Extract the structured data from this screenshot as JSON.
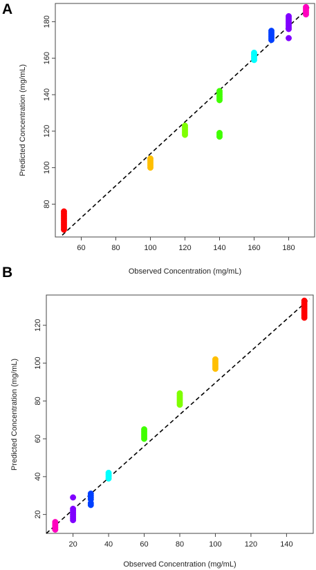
{
  "chart_data": [
    {
      "type": "scatter",
      "panel_label": "A",
      "xlabel": "Observed Concentration (mg/mL)",
      "ylabel": "Predicted Concentration (mg/mL)",
      "xlim": [
        45,
        195
      ],
      "ylim": [
        62,
        190
      ],
      "xticks": [
        60,
        80,
        100,
        120,
        140,
        160,
        180
      ],
      "yticks": [
        80,
        100,
        120,
        140,
        160,
        180
      ],
      "reference_line": {
        "style": "dashed",
        "color": "#000000",
        "from": [
          49,
          63
        ],
        "to": [
          192,
          188
        ]
      },
      "series": [
        {
          "color": "#ff0000",
          "points": [
            [
              50,
              76
            ],
            [
              50,
              75
            ],
            [
              50,
              74
            ],
            [
              50,
              73
            ],
            [
              50,
              72
            ],
            [
              50,
              71
            ],
            [
              50,
              70
            ],
            [
              50,
              69
            ],
            [
              50,
              68
            ],
            [
              50,
              67
            ],
            [
              50,
              66
            ]
          ]
        },
        {
          "color": "#ffbf00",
          "points": [
            [
              100,
              105
            ],
            [
              100,
              104
            ],
            [
              100,
              103
            ],
            [
              100,
              102
            ],
            [
              100,
              101
            ],
            [
              100,
              100
            ]
          ]
        },
        {
          "color": "#7fff00",
          "points": [
            [
              120,
              123
            ],
            [
              120,
              122
            ],
            [
              120,
              121
            ],
            [
              120,
              120
            ],
            [
              120,
              119
            ],
            [
              120,
              118
            ]
          ]
        },
        {
          "color": "#40ff00",
          "points": [
            [
              140,
              142
            ],
            [
              140,
              141
            ],
            [
              140,
              140
            ],
            [
              140,
              139
            ],
            [
              140,
              138
            ],
            [
              140,
              137
            ],
            [
              140,
              119
            ],
            [
              140,
              118
            ],
            [
              140,
              117
            ]
          ]
        },
        {
          "color": "#00ffff",
          "points": [
            [
              160,
              163
            ],
            [
              160,
              162
            ],
            [
              160,
              161
            ],
            [
              160,
              160
            ],
            [
              160,
              159
            ]
          ]
        },
        {
          "color": "#0040ff",
          "points": [
            [
              170,
              175
            ],
            [
              170,
              174
            ],
            [
              170,
              173
            ],
            [
              170,
              172
            ],
            [
              170,
              171
            ],
            [
              170,
              170
            ]
          ]
        },
        {
          "color": "#8000ff",
          "points": [
            [
              180,
              183
            ],
            [
              180,
              182
            ],
            [
              180,
              181
            ],
            [
              180,
              180
            ],
            [
              180,
              179
            ],
            [
              180,
              178
            ],
            [
              180,
              177
            ],
            [
              180,
              176
            ],
            [
              180,
              171
            ]
          ]
        },
        {
          "color": "#ff00bf",
          "points": [
            [
              190,
              188
            ],
            [
              190,
              187
            ],
            [
              190,
              186
            ],
            [
              190,
              185
            ],
            [
              190,
              184
            ]
          ]
        }
      ]
    },
    {
      "type": "scatter",
      "panel_label": "B",
      "xlabel": "Observed Concentration (mg/mL)",
      "ylabel": "Predicted Concentration (mg/mL)",
      "xlim": [
        5,
        155
      ],
      "ylim": [
        10,
        136
      ],
      "xticks": [
        20,
        40,
        60,
        80,
        100,
        120,
        140
      ],
      "yticks": [
        20,
        40,
        60,
        80,
        100,
        120
      ],
      "reference_line": {
        "style": "dashed",
        "color": "#000000",
        "from": [
          5,
          10
        ],
        "to": [
          153,
          134
        ]
      },
      "series": [
        {
          "color": "#ff00bf",
          "points": [
            [
              10,
              16
            ],
            [
              10,
              15
            ],
            [
              10,
              14
            ],
            [
              10,
              13
            ],
            [
              10,
              12
            ]
          ]
        },
        {
          "color": "#8000ff",
          "points": [
            [
              20,
              29
            ],
            [
              20,
              23
            ],
            [
              20,
              22
            ],
            [
              20,
              21
            ],
            [
              20,
              20
            ],
            [
              20,
              19
            ],
            [
              20,
              18
            ],
            [
              20,
              17
            ]
          ]
        },
        {
          "color": "#0040ff",
          "points": [
            [
              30,
              31
            ],
            [
              30,
              30
            ],
            [
              30,
              29
            ],
            [
              30,
              28
            ],
            [
              30,
              26
            ],
            [
              30,
              25
            ]
          ]
        },
        {
          "color": "#00ffff",
          "points": [
            [
              40,
              42
            ],
            [
              40,
              41
            ],
            [
              40,
              40
            ],
            [
              40,
              39
            ]
          ]
        },
        {
          "color": "#40ff00",
          "points": [
            [
              60,
              65
            ],
            [
              60,
              64
            ],
            [
              60,
              63
            ],
            [
              60,
              62
            ],
            [
              60,
              61
            ],
            [
              60,
              60
            ]
          ]
        },
        {
          "color": "#7fff00",
          "points": [
            [
              80,
              84
            ],
            [
              80,
              83
            ],
            [
              80,
              82
            ],
            [
              80,
              81
            ],
            [
              80,
              80
            ],
            [
              80,
              79
            ],
            [
              80,
              78
            ]
          ]
        },
        {
          "color": "#ffbf00",
          "points": [
            [
              100,
              102
            ],
            [
              100,
              101
            ],
            [
              100,
              100
            ],
            [
              100,
              99
            ],
            [
              100,
              98
            ],
            [
              100,
              97
            ]
          ]
        },
        {
          "color": "#ff0000",
          "points": [
            [
              150,
              133
            ],
            [
              150,
              132
            ],
            [
              150,
              131
            ],
            [
              150,
              130
            ],
            [
              150,
              129
            ],
            [
              150,
              128
            ],
            [
              150,
              127
            ],
            [
              150,
              126
            ],
            [
              150,
              125
            ],
            [
              150,
              124
            ]
          ]
        }
      ]
    }
  ]
}
